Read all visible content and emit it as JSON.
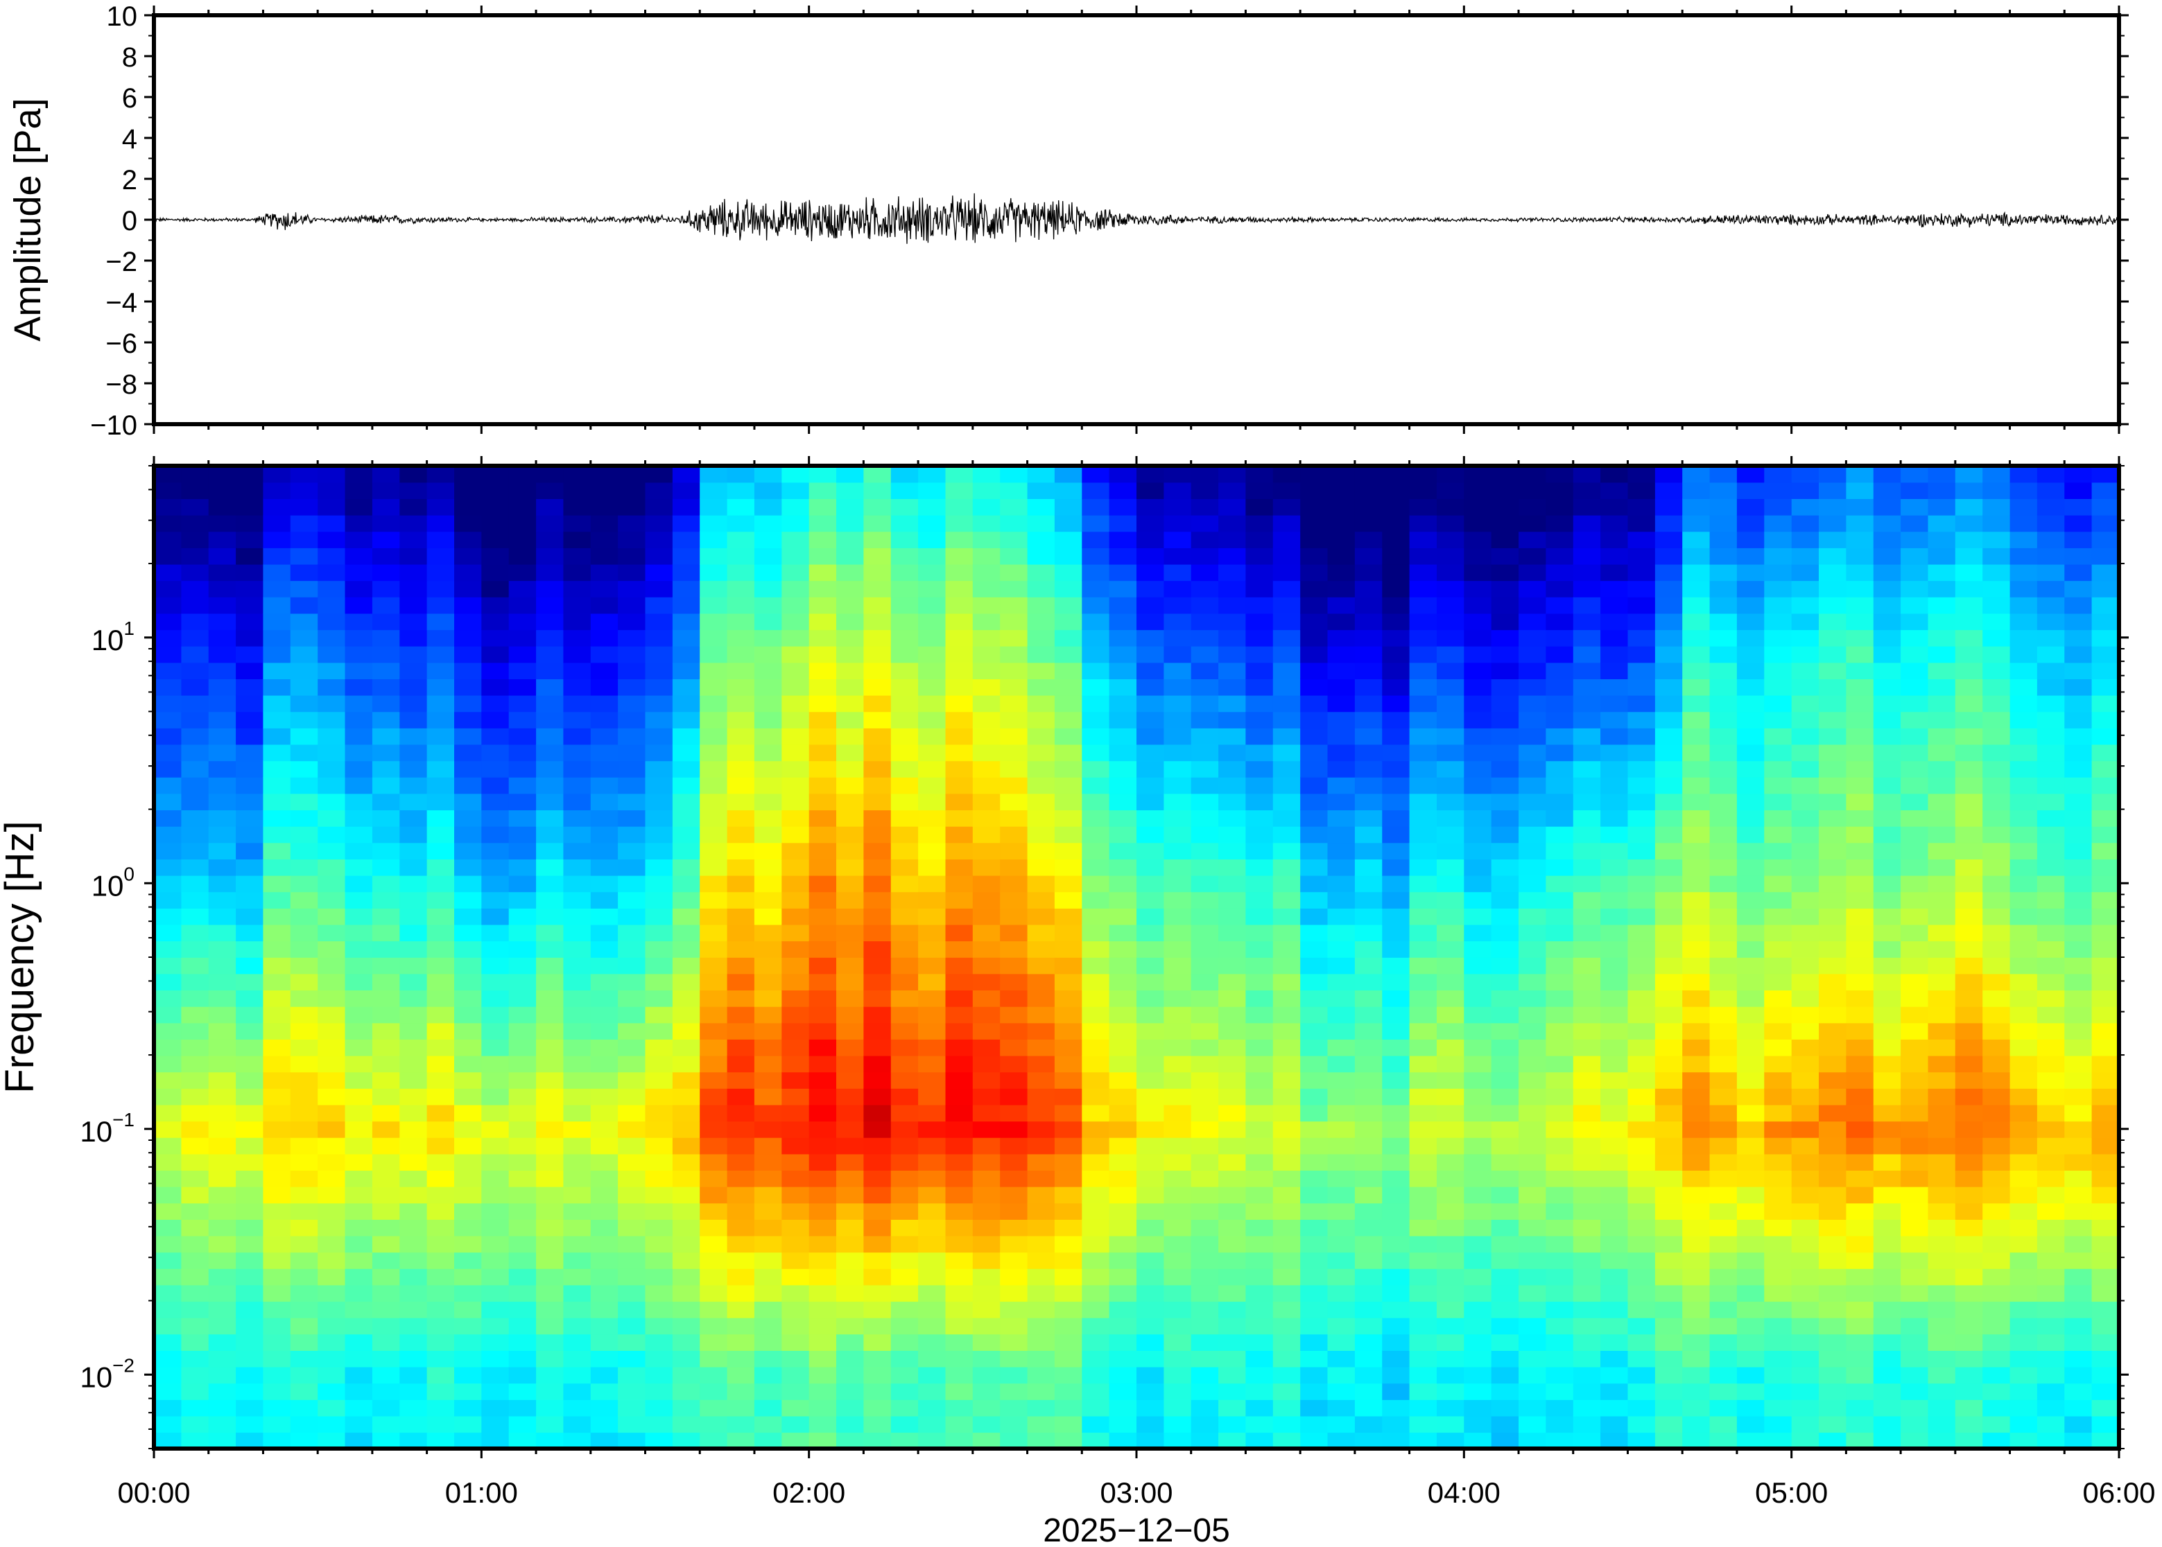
{
  "chart_data": [
    {
      "type": "line",
      "panel": "waveform",
      "ylabel": "Amplitude [Pa]",
      "ylim": [
        -10,
        10
      ],
      "yticks": [
        10,
        8,
        6,
        4,
        2,
        0,
        -2,
        -4,
        -6,
        -8,
        -10
      ],
      "ytick_labels": [
        "10",
        "8",
        "6",
        "4",
        "2",
        "0",
        "−2",
        "−4",
        "−6",
        "−8",
        "−10"
      ],
      "xlim_hours": [
        0,
        6
      ],
      "grid": false,
      "color": "#000000",
      "envelope": {
        "note": "peak absolute amplitude of the trace, sampled every 0.1 h from 00:00 to 06:00",
        "values": [
          0.1,
          0.1,
          0.1,
          0.1,
          0.7,
          0.1,
          0.2,
          0.3,
          0.2,
          0.15,
          0.1,
          0.1,
          0.15,
          0.15,
          0.15,
          0.3,
          0.2,
          1.1,
          1.2,
          1.1,
          1.2,
          1.2,
          1.3,
          1.4,
          1.3,
          1.4,
          1.3,
          1.2,
          1.0,
          0.6,
          0.4,
          0.3,
          0.2,
          0.2,
          0.15,
          0.15,
          0.12,
          0.12,
          0.12,
          0.12,
          0.1,
          0.1,
          0.12,
          0.12,
          0.15,
          0.15,
          0.15,
          0.2,
          0.3,
          0.3,
          0.3,
          0.3,
          0.3,
          0.3,
          0.4,
          0.4,
          0.4,
          0.4,
          0.3,
          0.3,
          0.3
        ]
      }
    },
    {
      "type": "heatmap",
      "panel": "spectrogram",
      "ylabel": "Frequency [Hz]",
      "yscale": "log",
      "ylim": [
        0.005,
        50
      ],
      "yticks": [
        0.01,
        0.1,
        1,
        10
      ],
      "ytick_labels": [
        {
          "base": "10",
          "exp": "−2"
        },
        {
          "base": "10",
          "exp": "−1"
        },
        {
          "base": "10",
          "exp": "0"
        },
        {
          "base": "10",
          "exp": "1"
        }
      ],
      "xlim_hours": [
        0,
        6
      ],
      "xticks_hours": [
        0,
        1,
        2,
        3,
        4,
        5,
        6
      ],
      "xtick_labels": [
        "00:00",
        "01:00",
        "02:00",
        "03:00",
        "04:00",
        "05:00",
        "06:00"
      ],
      "xlabel": "2025−12−05",
      "colormap": [
        "#00007f",
        "#0000ff",
        "#007fff",
        "#00ffff",
        "#7fff7f",
        "#ffff00",
        "#ff7f00",
        "#ff0000",
        "#7f0000"
      ],
      "time_columns": 72,
      "frequency_rows": 60,
      "intensity_profile": {
        "note": "relative spectral power (0-1) per 0.1 h column, at reference frequencies 0.01, 0.1, 1 and 10 Hz",
        "f_0_01": [
          0.38,
          0.38,
          0.38,
          0.38,
          0.4,
          0.38,
          0.38,
          0.38,
          0.38,
          0.38,
          0.38,
          0.38,
          0.38,
          0.38,
          0.38,
          0.4,
          0.42,
          0.45,
          0.45,
          0.45,
          0.45,
          0.45,
          0.45,
          0.45,
          0.45,
          0.45,
          0.45,
          0.45,
          0.45,
          0.42,
          0.38,
          0.38,
          0.38,
          0.38,
          0.38,
          0.38,
          0.38,
          0.38,
          0.36,
          0.36,
          0.36,
          0.36,
          0.36,
          0.36,
          0.36,
          0.36,
          0.4,
          0.4,
          0.42,
          0.42,
          0.42,
          0.42,
          0.42,
          0.42,
          0.42,
          0.42,
          0.4,
          0.4,
          0.4,
          0.4,
          0.4
        ],
        "f_0_1": [
          0.55,
          0.6,
          0.62,
          0.62,
          0.68,
          0.65,
          0.65,
          0.66,
          0.64,
          0.62,
          0.62,
          0.6,
          0.6,
          0.6,
          0.6,
          0.64,
          0.66,
          0.8,
          0.82,
          0.83,
          0.84,
          0.85,
          0.86,
          0.86,
          0.86,
          0.85,
          0.84,
          0.82,
          0.78,
          0.72,
          0.66,
          0.62,
          0.6,
          0.58,
          0.56,
          0.55,
          0.55,
          0.55,
          0.55,
          0.55,
          0.56,
          0.56,
          0.57,
          0.58,
          0.6,
          0.62,
          0.64,
          0.7,
          0.72,
          0.73,
          0.74,
          0.75,
          0.75,
          0.75,
          0.76,
          0.75,
          0.74,
          0.73,
          0.72,
          0.72,
          0.72
        ],
        "f_1": [
          0.3,
          0.3,
          0.32,
          0.34,
          0.45,
          0.4,
          0.4,
          0.42,
          0.38,
          0.34,
          0.32,
          0.32,
          0.32,
          0.32,
          0.32,
          0.35,
          0.4,
          0.62,
          0.64,
          0.66,
          0.68,
          0.7,
          0.7,
          0.72,
          0.72,
          0.7,
          0.68,
          0.65,
          0.6,
          0.55,
          0.48,
          0.44,
          0.42,
          0.4,
          0.38,
          0.36,
          0.36,
          0.36,
          0.35,
          0.36,
          0.36,
          0.38,
          0.38,
          0.4,
          0.42,
          0.44,
          0.46,
          0.5,
          0.52,
          0.52,
          0.52,
          0.53,
          0.53,
          0.53,
          0.53,
          0.52,
          0.52,
          0.5,
          0.5,
          0.5,
          0.5
        ],
        "f_10": [
          0.12,
          0.12,
          0.13,
          0.14,
          0.25,
          0.2,
          0.2,
          0.22,
          0.18,
          0.14,
          0.12,
          0.12,
          0.12,
          0.12,
          0.12,
          0.15,
          0.2,
          0.45,
          0.47,
          0.5,
          0.52,
          0.55,
          0.55,
          0.56,
          0.56,
          0.55,
          0.52,
          0.48,
          0.42,
          0.35,
          0.25,
          0.2,
          0.18,
          0.16,
          0.14,
          0.12,
          0.12,
          0.12,
          0.12,
          0.12,
          0.12,
          0.13,
          0.13,
          0.14,
          0.15,
          0.16,
          0.18,
          0.35,
          0.38,
          0.38,
          0.38,
          0.4,
          0.4,
          0.4,
          0.4,
          0.38,
          0.38,
          0.36,
          0.35,
          0.35,
          0.35
        ]
      }
    }
  ]
}
